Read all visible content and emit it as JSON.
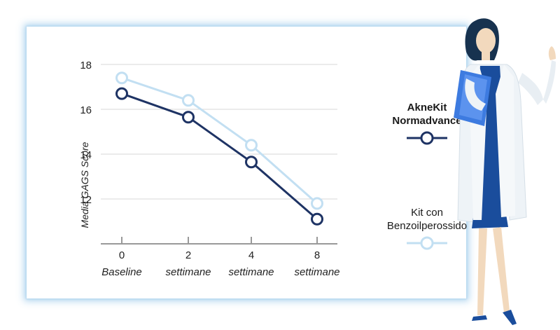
{
  "chart_data": {
    "type": "line",
    "ylabel": "Media GAGS Score",
    "xlabel": "",
    "ylim": [
      10,
      18
    ],
    "yticks": [
      12,
      14,
      16,
      18
    ],
    "grid": true,
    "legend_position": "right",
    "x_ticks": [
      {
        "number": "0",
        "label": "Baseline"
      },
      {
        "number": "2",
        "label": "settimane"
      },
      {
        "number": "4",
        "label": "settimane"
      },
      {
        "number": "8",
        "label": "settimane"
      }
    ],
    "series": [
      {
        "name": "Kit con Benzoilperossido",
        "color": "#c2dff2",
        "values": [
          17.4,
          16.4,
          14.4,
          11.8
        ]
      },
      {
        "name": "AkneKit Normadvance",
        "color": "#1e3364",
        "values": [
          16.7,
          15.65,
          13.65,
          11.1
        ]
      }
    ]
  },
  "legend": {
    "akne_line1": "AkneKit",
    "akne_line2": "Normadvance",
    "kit_line1": "Kit con",
    "kit_line2": "Benzoilperossido"
  },
  "colors": {
    "dark_series": "#1e3364",
    "light_series": "#c2dff2",
    "grid": "#d7d7d7",
    "axis": "#999999"
  },
  "illustration": {
    "icon": "doctor-with-clipboard-illustration"
  }
}
